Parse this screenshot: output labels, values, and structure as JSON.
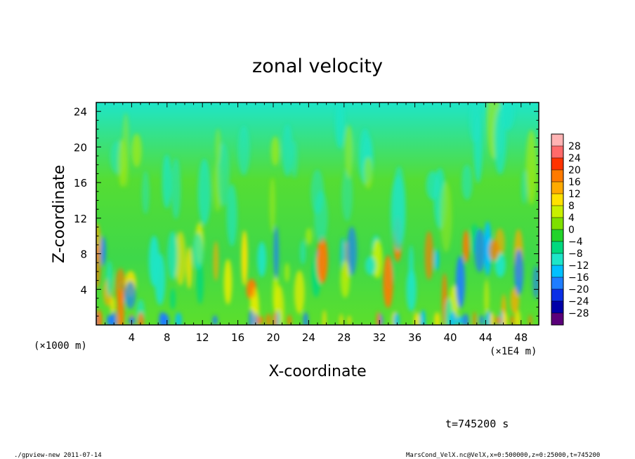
{
  "chart_data": {
    "type": "heatmap",
    "title": "zonal velocity",
    "xlabel": "X-coordinate",
    "ylabel": "Z-coordinate",
    "x_scale_note": "(×1E4 m)",
    "y_scale_note": "(×1000 m)",
    "x_ticks": [
      "4",
      "8",
      "12",
      "16",
      "20",
      "24",
      "28",
      "32",
      "36",
      "40",
      "44",
      "48"
    ],
    "y_ticks": [
      "4",
      "8",
      "12",
      "16",
      "20",
      "24"
    ],
    "xlim": [
      0,
      50
    ],
    "ylim": [
      0,
      25
    ],
    "colorbar_labels": [
      "28",
      "24",
      "20",
      "16",
      "12",
      "8",
      "4",
      "0",
      "−4",
      "−8",
      "−12",
      "−16",
      "−20",
      "−24",
      "−28"
    ],
    "colorbar_colors": [
      "#ffb3b3",
      "#ff6a6a",
      "#ff3300",
      "#ff7a00",
      "#ffaa00",
      "#ffe100",
      "#c8f000",
      "#7ee000",
      "#22d32a",
      "#00d97e",
      "#1ee5c8",
      "#00c0ff",
      "#1e7dff",
      "#0a2fe6",
      "#0000a8",
      "#5a007a"
    ],
    "annotation_time": "t=745200 s"
  },
  "footer": {
    "left": "./gpview-new   2011-07-14",
    "right": "MarsCond_VelX.nc@VelX,x=0:500000,z=0:25000,t=745200"
  }
}
